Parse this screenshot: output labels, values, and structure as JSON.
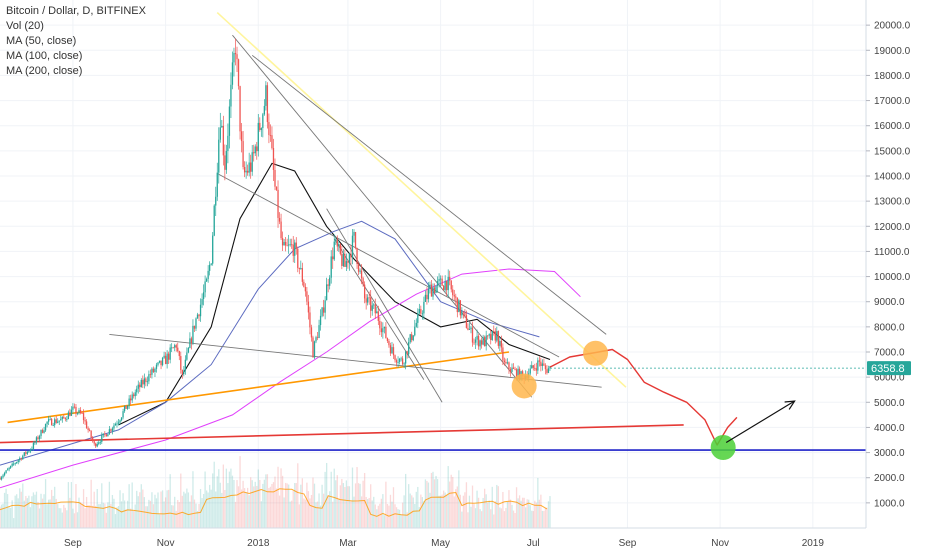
{
  "legend": {
    "symbol": "Bitcoin / Dollar, D, BITFINEX",
    "indicators": [
      "Vol (20)",
      "MA (50, close)",
      "MA (100, close)",
      "MA (200, close)"
    ]
  },
  "colors": {
    "candle_up": "#26a69a",
    "candle_down": "#ef5350",
    "ma50": "#111111",
    "ma100": "#5c6bc0",
    "ma200": "#e040fb",
    "trend_orange": "#ff9800",
    "trend_red": "#e53935",
    "support_blue": "#1e22c9",
    "trend_yellow": "#fff59d",
    "trend_gray": "#777777",
    "projection": "#e53935",
    "circle_orange": "#ffb74d",
    "circle_green": "#4cd137",
    "price_label_bg": "#26a69a"
  },
  "chart_data": {
    "type": "candlestick",
    "symbol": "Bitcoin / Dollar",
    "interval": "D",
    "exchange": "BITFINEX",
    "ylim": [
      0,
      21000
    ],
    "y_ticks": [
      1000,
      2000,
      3000,
      4000,
      5000,
      6000,
      7000,
      8000,
      9000,
      10000,
      11000,
      12000,
      13000,
      14000,
      15000,
      16000,
      17000,
      18000,
      19000,
      20000
    ],
    "y_tick_labels": [
      "1000.0",
      "2000.0",
      "3000.0",
      "4000.0",
      "5000.0",
      "6000.0",
      "7000.0",
      "8000.0",
      "9000.0",
      "10000.0",
      "11000.0",
      "12000.0",
      "13000.0",
      "14000.0",
      "15000.0",
      "16000.0",
      "17000.0",
      "18000.0",
      "19000.0",
      "20000.0"
    ],
    "x_range": [
      "2017-07-15",
      "2019-02-05"
    ],
    "x_ticks": [
      {
        "date": "2017-09-01",
        "label": "Sep"
      },
      {
        "date": "2017-11-01",
        "label": "Nov"
      },
      {
        "date": "2018-01-01",
        "label": "2018"
      },
      {
        "date": "2018-03-01",
        "label": "Mar"
      },
      {
        "date": "2018-05-01",
        "label": "May"
      },
      {
        "date": "2018-07-01",
        "label": "Jul"
      },
      {
        "date": "2018-09-01",
        "label": "Sep"
      },
      {
        "date": "2018-11-01",
        "label": "Nov"
      },
      {
        "date": "2019-01-01",
        "label": "2019"
      }
    ],
    "last_price": 6358.8,
    "last_price_label": "6358.8",
    "price_path": [
      [
        "2017-07-15",
        2000
      ],
      [
        "2017-07-25",
        2600
      ],
      [
        "2017-08-05",
        3200
      ],
      [
        "2017-08-15",
        4200
      ],
      [
        "2017-08-25",
        4300
      ],
      [
        "2017-09-01",
        4700
      ],
      [
        "2017-09-07",
        4500
      ],
      [
        "2017-09-15",
        3300
      ],
      [
        "2017-09-22",
        3700
      ],
      [
        "2017-10-01",
        4300
      ],
      [
        "2017-10-12",
        5400
      ],
      [
        "2017-10-20",
        6000
      ],
      [
        "2017-11-01",
        6700
      ],
      [
        "2017-11-08",
        7300
      ],
      [
        "2017-11-12",
        6000
      ],
      [
        "2017-11-20",
        8100
      ],
      [
        "2017-11-28",
        9700
      ],
      [
        "2017-12-01",
        10800
      ],
      [
        "2017-12-07",
        16500
      ],
      [
        "2017-12-10",
        14500
      ],
      [
        "2017-12-17",
        19300
      ],
      [
        "2017-12-22",
        14000
      ],
      [
        "2017-12-28",
        14500
      ],
      [
        "2018-01-06",
        17200
      ],
      [
        "2018-01-12",
        13500
      ],
      [
        "2018-01-17",
        11000
      ],
      [
        "2018-01-24",
        11200
      ],
      [
        "2018-02-01",
        9500
      ],
      [
        "2018-02-06",
        7000
      ],
      [
        "2018-02-12",
        8500
      ],
      [
        "2018-02-20",
        11300
      ],
      [
        "2018-02-27",
        10400
      ],
      [
        "2018-03-05",
        11500
      ],
      [
        "2018-03-12",
        9100
      ],
      [
        "2018-03-20",
        8500
      ],
      [
        "2018-03-31",
        6900
      ],
      [
        "2018-04-06",
        6600
      ],
      [
        "2018-04-14",
        8000
      ],
      [
        "2018-04-24",
        9500
      ],
      [
        "2018-05-05",
        9800
      ],
      [
        "2018-05-15",
        8500
      ],
      [
        "2018-05-23",
        7500
      ],
      [
        "2018-05-30",
        7400
      ],
      [
        "2018-06-07",
        7700
      ],
      [
        "2018-06-12",
        6500
      ],
      [
        "2018-06-24",
        6000
      ],
      [
        "2018-06-30",
        6300
      ],
      [
        "2018-07-05",
        6600
      ],
      [
        "2018-07-09",
        6300
      ],
      [
        "2018-07-12",
        6358.8
      ]
    ],
    "volume_ylim": [
      0,
      4000
    ],
    "series": [
      {
        "name": "Vol (20)",
        "type": "volume"
      },
      {
        "name": "MA (50, close)",
        "x": [
          "2017-10-01",
          "2017-11-01",
          "2017-12-01",
          "2017-12-20",
          "2018-01-10",
          "2018-01-25",
          "2018-02-15",
          "2018-03-05",
          "2018-04-01",
          "2018-05-01",
          "2018-05-25",
          "2018-06-15",
          "2018-07-12"
        ],
        "y": [
          4100,
          5000,
          8000,
          12300,
          14500,
          14200,
          12000,
          10700,
          9000,
          8000,
          8300,
          7300,
          6700
        ]
      },
      {
        "name": "MA (100, close)",
        "x": [
          "2017-07-15",
          "2017-10-01",
          "2017-11-01",
          "2017-12-01",
          "2018-01-01",
          "2018-01-25",
          "2018-02-20",
          "2018-03-10",
          "2018-04-01",
          "2018-05-01",
          "2018-06-01",
          "2018-07-05"
        ],
        "y": [
          2500,
          3900,
          5000,
          6500,
          9500,
          11100,
          11800,
          12200,
          11500,
          9000,
          8200,
          7600
        ]
      },
      {
        "name": "MA (200, close)",
        "x": [
          "2017-07-15",
          "2017-09-01",
          "2017-11-01",
          "2017-12-15",
          "2018-01-15",
          "2018-02-15",
          "2018-03-15",
          "2018-04-15",
          "2018-05-15",
          "2018-06-15",
          "2018-07-15",
          "2018-08-01"
        ],
        "y": [
          1600,
          2500,
          3500,
          4500,
          5800,
          7000,
          8200,
          9300,
          10100,
          10300,
          10200,
          9200
        ]
      }
    ],
    "annotations": {
      "trendlines": [
        {
          "color": "trend_orange",
          "from": [
            "2017-07-20",
            4200
          ],
          "to": [
            "2018-06-15",
            7000
          ]
        },
        {
          "color": "trend_red",
          "from": [
            "2017-07-15",
            3400
          ],
          "to": [
            "2018-10-08",
            4100
          ]
        },
        {
          "color": "support_blue",
          "from": [
            "2017-07-15",
            3100
          ],
          "to": [
            "2019-02-05",
            3100
          ]
        },
        {
          "color": "trend_yellow",
          "from": [
            "2017-12-05",
            20500
          ],
          "to": [
            "2018-08-31",
            5600
          ]
        },
        {
          "color": "trend_gray",
          "from": [
            "2017-12-15",
            19600
          ],
          "to": [
            "2018-06-30",
            5200
          ]
        },
        {
          "color": "trend_gray",
          "from": [
            "2017-12-28",
            18800
          ],
          "to": [
            "2018-08-18",
            7700
          ]
        },
        {
          "color": "trend_gray",
          "from": [
            "2017-12-05",
            14100
          ],
          "to": [
            "2018-07-18",
            6800
          ]
        },
        {
          "color": "trend_gray",
          "from": [
            "2017-09-25",
            7700
          ],
          "to": [
            "2018-08-15",
            5600
          ]
        },
        {
          "color": "trend_gray",
          "from": [
            "2018-02-15",
            12700
          ],
          "to": [
            "2018-05-02",
            5000
          ]
        },
        {
          "color": "trend_gray",
          "from": [
            "2018-02-20",
            11500
          ],
          "to": [
            "2018-04-20",
            5900
          ]
        }
      ],
      "projection": [
        [
          "2018-07-12",
          6400
        ],
        [
          "2018-07-25",
          6800
        ],
        [
          "2018-08-13",
          7000
        ],
        [
          "2018-08-22",
          7100
        ],
        [
          "2018-09-01",
          6700
        ],
        [
          "2018-09-12",
          5800
        ],
        [
          "2018-09-25",
          5400
        ],
        [
          "2018-10-10",
          5000
        ],
        [
          "2018-10-22",
          4300
        ],
        [
          "2018-10-30",
          3300
        ],
        [
          "2018-11-06",
          4000
        ],
        [
          "2018-11-12",
          4400
        ]
      ],
      "arrow": {
        "from": [
          "2018-11-05",
          3400
        ],
        "to": [
          "2018-12-20",
          5050
        ]
      },
      "circles": [
        {
          "color": "circle_orange",
          "center": [
            "2018-06-25",
            5650
          ]
        },
        {
          "color": "circle_orange",
          "center": [
            "2018-08-11",
            6950
          ]
        },
        {
          "color": "circle_green",
          "center": [
            "2018-11-03",
            3200
          ]
        }
      ]
    }
  }
}
